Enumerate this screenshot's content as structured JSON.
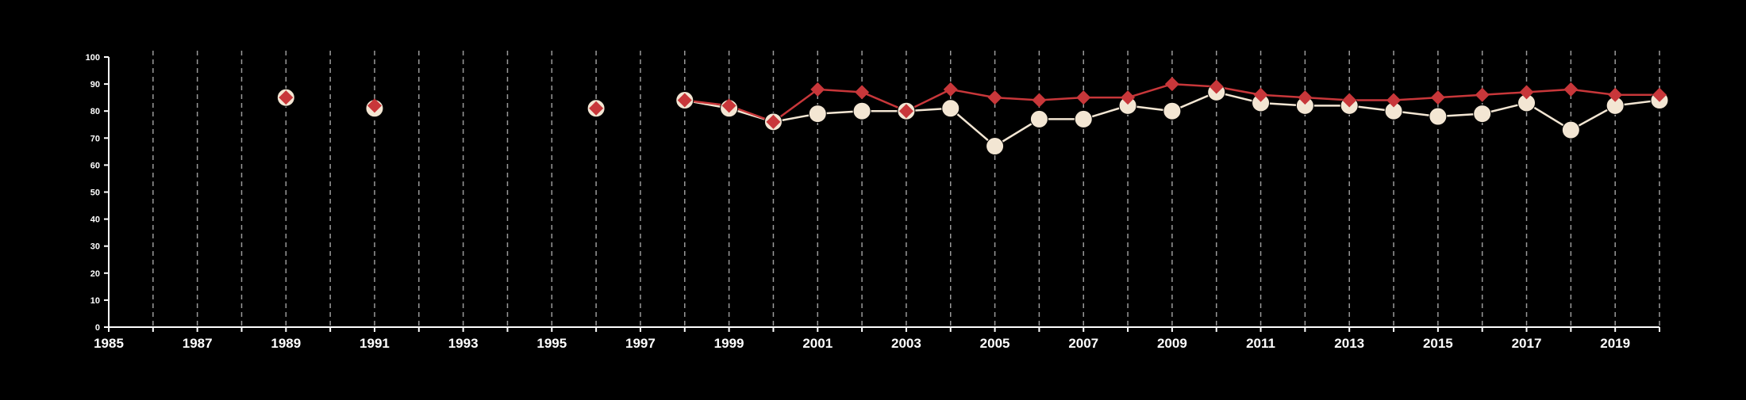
{
  "chart_data": {
    "type": "line",
    "title": "",
    "xlabel": "",
    "ylabel": "",
    "xlim": [
      1985,
      2020
    ],
    "ylim": [
      0,
      100
    ],
    "x_ticks": [
      "1985",
      "1987",
      "1989",
      "1991",
      "1993",
      "1995",
      "1997",
      "1999",
      "2001",
      "2003",
      "2005",
      "2007",
      "2009",
      "2011",
      "2013",
      "2015",
      "2017",
      "2019"
    ],
    "y_ticks": [
      "0",
      "10",
      "20",
      "30",
      "40",
      "50",
      "60",
      "70",
      "80",
      "90",
      "100"
    ],
    "grid": "vertical dashed lines every year",
    "colors": {
      "background": "#000000",
      "axis": "#ffffff",
      "grid": "#9a9a9a",
      "series_circle": "#f3e6d3",
      "series_diamond": "#c8373a"
    },
    "series": [
      {
        "marker": "circle",
        "color": "#f3e6d3",
        "points": [
          [
            1989,
            85
          ],
          [
            1991,
            81
          ],
          [
            1996,
            81
          ],
          [
            1998,
            84
          ],
          [
            1999,
            81
          ],
          [
            2000,
            76
          ],
          [
            2001,
            79
          ],
          [
            2002,
            80
          ],
          [
            2003,
            80
          ],
          [
            2004,
            81
          ],
          [
            2005,
            67
          ],
          [
            2006,
            77
          ],
          [
            2007,
            77
          ],
          [
            2008,
            82
          ],
          [
            2009,
            80
          ],
          [
            2010,
            87
          ],
          [
            2011,
            83
          ],
          [
            2012,
            82
          ],
          [
            2013,
            82
          ],
          [
            2014,
            80
          ],
          [
            2015,
            78
          ],
          [
            2016,
            79
          ],
          [
            2017,
            83
          ],
          [
            2018,
            73
          ],
          [
            2019,
            82
          ],
          [
            2020,
            84
          ]
        ]
      },
      {
        "marker": "diamond",
        "color": "#c8373a",
        "points": [
          [
            1989,
            85
          ],
          [
            1991,
            82
          ],
          [
            1996,
            81
          ],
          [
            1998,
            84
          ],
          [
            1999,
            82
          ],
          [
            2000,
            76
          ],
          [
            2001,
            88
          ],
          [
            2002,
            87
          ],
          [
            2003,
            80
          ],
          [
            2004,
            88
          ],
          [
            2005,
            85
          ],
          [
            2006,
            84
          ],
          [
            2007,
            85
          ],
          [
            2008,
            85
          ],
          [
            2009,
            90
          ],
          [
            2010,
            89
          ],
          [
            2011,
            86
          ],
          [
            2012,
            85
          ],
          [
            2013,
            84
          ],
          [
            2014,
            84
          ],
          [
            2015,
            85
          ],
          [
            2016,
            86
          ],
          [
            2017,
            87
          ],
          [
            2018,
            88
          ],
          [
            2019,
            86
          ],
          [
            2020,
            86
          ]
        ]
      }
    ]
  }
}
